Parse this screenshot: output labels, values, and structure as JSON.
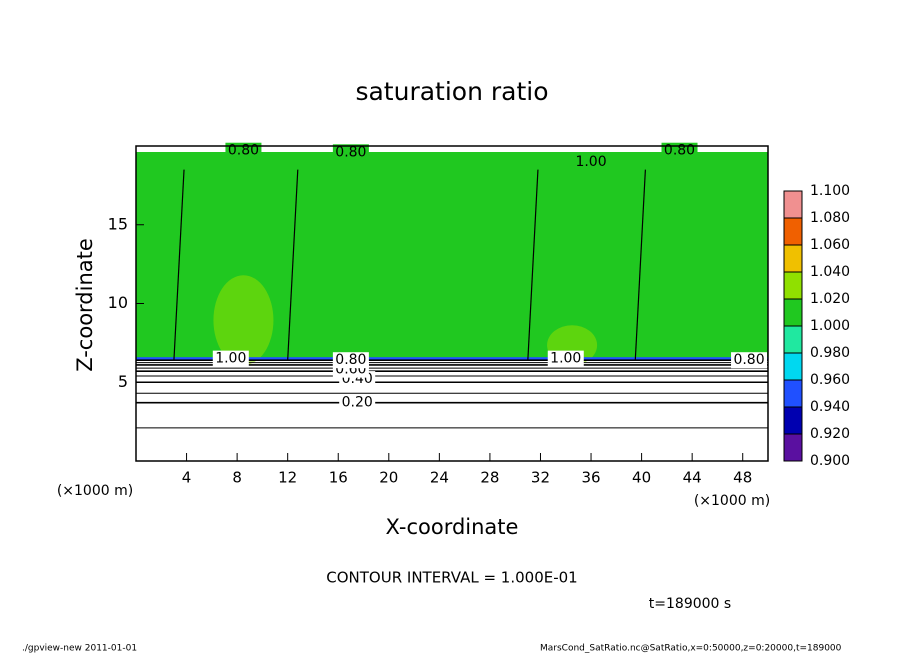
{
  "chart_data": {
    "type": "contour",
    "title": "saturation ratio",
    "x_label": "X-coordinate",
    "y_label": "Z-coordinate",
    "x_unit_left": "(×1000 m)",
    "x_unit_right": "(×1000 m)",
    "xlim": [
      0,
      50
    ],
    "ylim": [
      0,
      20
    ],
    "xticks": [
      4,
      8,
      12,
      16,
      20,
      24,
      28,
      32,
      36,
      40,
      44,
      48
    ],
    "yticks": [
      5,
      10,
      15
    ],
    "colorbar": {
      "ticks": [
        {
          "value": 0.9,
          "label": "0.900"
        },
        {
          "value": 0.92,
          "label": "0.920"
        },
        {
          "value": 0.94,
          "label": "0.940"
        },
        {
          "value": 0.96,
          "label": "0.960"
        },
        {
          "value": 0.98,
          "label": "0.980"
        },
        {
          "value": 1.0,
          "label": "1.000"
        },
        {
          "value": 1.02,
          "label": "1.020"
        },
        {
          "value": 1.04,
          "label": "1.040"
        },
        {
          "value": 1.06,
          "label": "1.060"
        },
        {
          "value": 1.08,
          "label": "1.080"
        },
        {
          "value": 1.1,
          "label": "1.100"
        }
      ],
      "colors": [
        "#5a10a0",
        "#0000b0",
        "#2050ff",
        "#00d8f0",
        "#20e8a0",
        "#20c820",
        "#90e000",
        "#f0c000",
        "#f06000",
        "#f09090"
      ]
    },
    "fill_color": "#20c820",
    "contours": {
      "levels": [
        0.1,
        0.2,
        0.3,
        0.4,
        0.5,
        0.6,
        0.7,
        0.8,
        0.9,
        1.0
      ],
      "z": [
        2.1,
        3.7,
        4.3,
        5.0,
        5.4,
        5.7,
        5.9,
        6.1,
        6.25,
        6.4
      ]
    },
    "contour_labels": [
      {
        "text": "0.20",
        "x": 17.5,
        "z": 3.7
      },
      {
        "text": "0.40",
        "x": 17.5,
        "z": 5.2
      },
      {
        "text": "0.60",
        "x": 17.0,
        "z": 5.8
      },
      {
        "text": "0.80",
        "x": 17.0,
        "z": 6.4
      },
      {
        "text": "1.00",
        "x": 7.5,
        "z": 6.5
      },
      {
        "text": "1.00",
        "x": 34.0,
        "z": 6.5
      },
      {
        "text": "0.80",
        "x": 48.5,
        "z": 6.4
      },
      {
        "text": "0.80",
        "x": 8.5,
        "z": 19.7
      },
      {
        "text": "0.80",
        "x": 17.0,
        "z": 19.6
      },
      {
        "text": "1.00",
        "x": 36.0,
        "z": 19.0
      },
      {
        "text": "0.80",
        "x": 43.0,
        "z": 19.7
      }
    ],
    "contour_interval": "CONTOUR INTERVAL = 1.000E-01",
    "time_label": "t=189000 s",
    "footer_left": "./gpview-new   2011-01-01",
    "footer_right": "MarsCond_SatRatio.nc@SatRatio,x=0:50000,z=0:20000,t=189000"
  }
}
